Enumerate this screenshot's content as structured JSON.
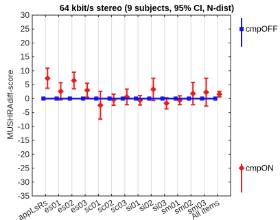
{
  "chart_data": {
    "type": "scatter",
    "title": "64 kbit/s stereo (9 subjects, 95% CI, N-dist)",
    "ylabel": "MUSHRAdiff-score",
    "xlabel": "",
    "ylim": [
      -35,
      30
    ],
    "yticks": [
      -35,
      -30,
      -25,
      -20,
      -15,
      -10,
      -5,
      0,
      5,
      10,
      15,
      20,
      25,
      30
    ],
    "grid": "vertical",
    "categories": [
      "appLsRs",
      "es01",
      "es02",
      "es03",
      "sc01",
      "sc02",
      "sc03",
      "si01",
      "si02",
      "si03",
      "sm01",
      "sm02",
      "sm03",
      "All items"
    ],
    "series": [
      {
        "name": "cmpOFF",
        "color": "#1515e6",
        "marker": "square",
        "values": [
          0,
          0,
          0,
          0,
          0,
          0,
          0,
          0,
          0,
          0,
          0,
          0,
          0,
          0
        ],
        "ci_low": [
          0,
          0,
          0,
          0,
          0,
          0,
          0,
          0,
          0,
          0,
          0,
          0,
          0,
          0
        ],
        "ci_high": [
          0,
          0,
          0,
          0,
          0,
          0,
          0,
          0,
          0,
          0,
          0,
          0,
          0,
          0
        ]
      },
      {
        "name": "cmpON",
        "color": "#e61e1e",
        "marker": "diamond",
        "values": [
          7.3,
          2.6,
          6.5,
          3.0,
          -2.4,
          -0.4,
          0.6,
          -0.6,
          3.3,
          -1.7,
          -0.6,
          1.8,
          2.3,
          1.6
        ],
        "ci_low": [
          3.7,
          -0.5,
          3.5,
          0.5,
          -7.4,
          -2.4,
          -2.2,
          -2.3,
          -0.7,
          -3.7,
          -2.2,
          -2.2,
          -2.7,
          0.6
        ],
        "ci_high": [
          10.9,
          5.7,
          9.5,
          5.5,
          2.6,
          1.6,
          3.4,
          1.1,
          7.3,
          0.3,
          1.0,
          5.8,
          7.3,
          2.6
        ]
      }
    ],
    "legend": [
      {
        "label": "cmpOFF",
        "position": "right-top"
      },
      {
        "label": "cmpON",
        "position": "right-bottom"
      }
    ]
  }
}
